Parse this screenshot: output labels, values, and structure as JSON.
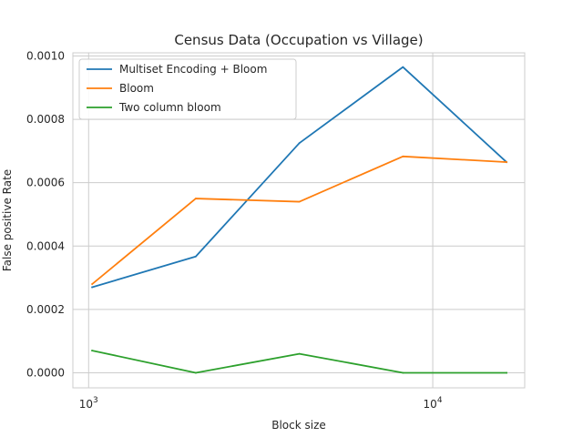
{
  "chart_data": {
    "type": "line",
    "title": "Census Data (Occupation vs Village)",
    "xlabel": "Block size",
    "ylabel": "False positive Rate",
    "xscale": "log",
    "x": [
      1024,
      2048,
      4096,
      8192,
      16384
    ],
    "xlim": [
      900,
      18500
    ],
    "ylim": [
      -4.75e-05,
      0.00101
    ],
    "xticks": [
      {
        "value": 1000,
        "base": "10",
        "exp": "3"
      },
      {
        "value": 10000,
        "base": "10",
        "exp": "4"
      }
    ],
    "yticks": [
      {
        "value": 0.0,
        "label": "0.0000"
      },
      {
        "value": 0.0002,
        "label": "0.0002"
      },
      {
        "value": 0.0004,
        "label": "0.0004"
      },
      {
        "value": 0.0006,
        "label": "0.0006"
      },
      {
        "value": 0.0008,
        "label": "0.0008"
      },
      {
        "value": 0.001,
        "label": "0.0010"
      }
    ],
    "grid": true,
    "legend_position": "upper-left",
    "series": [
      {
        "name": "Multiset Encoding + Bloom",
        "color": "#1f77b4",
        "values": [
          0.00027,
          0.000367,
          0.000725,
          0.000965,
          0.000665
        ]
      },
      {
        "name": "Bloom",
        "color": "#ff7f0e",
        "values": [
          0.00028,
          0.00055,
          0.00054,
          0.000683,
          0.000665
        ]
      },
      {
        "name": "Two column bloom",
        "color": "#2ca02c",
        "values": [
          7e-05,
          0.0,
          6e-05,
          0.0,
          0.0
        ]
      }
    ]
  }
}
